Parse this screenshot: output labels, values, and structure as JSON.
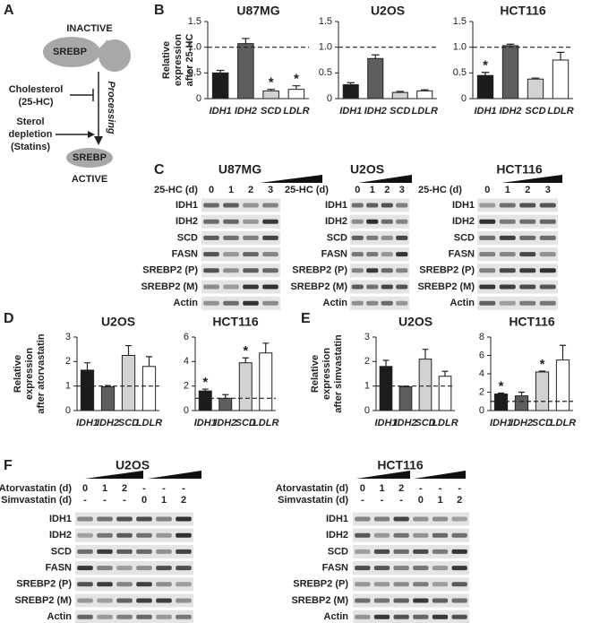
{
  "panel_labels": [
    "A",
    "B",
    "C",
    "D",
    "E",
    "F"
  ],
  "diagram": {
    "top_state": "INACTIVE",
    "top_protein": "SREBP",
    "inhibitor": [
      "Cholesterol",
      "(25-HC)"
    ],
    "activator": [
      "Sterol",
      "depletion",
      "(Statins)"
    ],
    "process": "Processing",
    "bottom_protein": "SREBP",
    "bottom_state": "ACTIVE"
  },
  "chart_data": [
    {
      "type": "bar",
      "title": "U87MG",
      "ylabel": [
        "Relative",
        "expression",
        "after 25-HC"
      ],
      "categories": [
        "IDH1",
        "IDH2",
        "SCD",
        "LDLR"
      ],
      "colors": [
        "#1c1c1c",
        "#5e5e5e",
        "#d2d2d2",
        "#ffffff"
      ],
      "values": [
        0.5,
        1.07,
        0.15,
        0.18
      ],
      "errors": [
        0.05,
        0.1,
        0.03,
        0.07
      ],
      "annotations": [
        null,
        null,
        "*",
        "*"
      ],
      "reference_line": 1,
      "ylim": [
        0,
        1.5
      ],
      "yticks": [
        0,
        0.5,
        {
          "value": 1,
          "label": "1.0"
        },
        1.5
      ]
    },
    {
      "type": "bar",
      "title": "U2OS",
      "categories": [
        "IDH1",
        "IDH2",
        "SCD",
        "LDLR"
      ],
      "colors": [
        "#1c1c1c",
        "#5e5e5e",
        "#d2d2d2",
        "#ffffff"
      ],
      "values": [
        0.27,
        0.78,
        0.12,
        0.15
      ],
      "errors": [
        0.04,
        0.07,
        0.02,
        0.02
      ],
      "annotations": [
        null,
        null,
        null,
        null
      ],
      "reference_line": 1,
      "ylim": [
        0,
        1.5
      ],
      "yticks": [
        0,
        0.5,
        {
          "value": 1,
          "label": "1.0"
        },
        1.5
      ]
    },
    {
      "type": "bar",
      "title": "HCT116",
      "categories": [
        "IDH1",
        "IDH2",
        "SCD",
        "LDLR"
      ],
      "colors": [
        "#1c1c1c",
        "#5e5e5e",
        "#d2d2d2",
        "#ffffff"
      ],
      "values": [
        0.45,
        1.03,
        0.38,
        0.75
      ],
      "errors": [
        0.06,
        0.03,
        0.02,
        0.15
      ],
      "annotations": [
        "*",
        null,
        null,
        null
      ],
      "reference_line": 1,
      "ylim": [
        0,
        1.5
      ],
      "yticks": [
        0,
        0.5,
        {
          "value": 1,
          "label": "1.0"
        },
        1.5
      ]
    },
    {
      "type": "bar",
      "title": "U2OS",
      "ylabel": [
        "Relative",
        "expression",
        "after atorvastatin"
      ],
      "categories": [
        "IDH1",
        "IDH2",
        "SCD",
        "LDLR"
      ],
      "colors": [
        "#1c1c1c",
        "#5e5e5e",
        "#d2d2d2",
        "#ffffff"
      ],
      "values": [
        1.65,
        0.97,
        2.25,
        1.8
      ],
      "errors": [
        0.3,
        0.05,
        0.4,
        0.4
      ],
      "annotations": [
        null,
        null,
        null,
        null
      ],
      "reference_line": 1,
      "ylim": [
        0,
        3
      ],
      "yticks": [
        0,
        1,
        2,
        3
      ]
    },
    {
      "type": "bar",
      "title": "HCT116",
      "categories": [
        "IDH1",
        "IDH2",
        "SCD",
        "LDLR"
      ],
      "colors": [
        "#1c1c1c",
        "#5e5e5e",
        "#d2d2d2",
        "#ffffff"
      ],
      "values": [
        1.6,
        1.0,
        3.9,
        4.7
      ],
      "errors": [
        0.15,
        0.3,
        0.4,
        0.8
      ],
      "annotations": [
        "*",
        null,
        "*",
        null
      ],
      "reference_line": 1,
      "ylim": [
        0,
        6
      ],
      "yticks": [
        0,
        2,
        4,
        6
      ]
    },
    {
      "type": "bar",
      "title": "U2OS",
      "ylabel": [
        "Relative",
        "expression",
        "after simvastatin"
      ],
      "categories": [
        "IDH1",
        "IDH2",
        "SCD",
        "LDLR"
      ],
      "colors": [
        "#1c1c1c",
        "#5e5e5e",
        "#d2d2d2",
        "#ffffff"
      ],
      "values": [
        1.8,
        0.97,
        2.1,
        1.4
      ],
      "errors": [
        0.25,
        0.03,
        0.4,
        0.2
      ],
      "annotations": [
        null,
        null,
        null,
        null
      ],
      "reference_line": 1,
      "ylim": [
        0,
        3
      ],
      "yticks": [
        0,
        1,
        2,
        3
      ]
    },
    {
      "type": "bar",
      "title": "HCT116",
      "categories": [
        "IDH1",
        "IDH2",
        "SCD",
        "LDLR"
      ],
      "colors": [
        "#1c1c1c",
        "#5e5e5e",
        "#d2d2d2",
        "#ffffff"
      ],
      "values": [
        1.8,
        1.6,
        4.2,
        5.5
      ],
      "errors": [
        0.1,
        0.4,
        0.1,
        1.6
      ],
      "annotations": [
        "*",
        null,
        "*",
        null
      ],
      "reference_line": 1,
      "ylim": [
        0,
        8
      ],
      "yticks": [
        0,
        2,
        4,
        6,
        8
      ]
    }
  ],
  "blots": [
    {
      "title": "U87MG",
      "treatments": [
        {
          "label": "25-HC (d)",
          "lanes": [
            "0",
            "1",
            "2",
            "3"
          ]
        }
      ],
      "rows": [
        "IDH1",
        "IDH2",
        "SCD",
        "FASN",
        "SREBP2 (P)",
        "SREBP2 (M)",
        "Actin"
      ]
    },
    {
      "title": "U2OS",
      "treatments": [
        {
          "label": "25-HC (d)",
          "lanes": [
            "0",
            "1",
            "2",
            "3"
          ]
        }
      ],
      "rows": [
        "IDH1",
        "IDH2",
        "SCD",
        "FASN",
        "SREBP2 (P)",
        "SREBP2 (M)",
        "Actin"
      ]
    },
    {
      "title": "HCT116",
      "treatments": [
        {
          "label": "25-HC (d)",
          "lanes": [
            "0",
            "1",
            "2",
            "3"
          ]
        }
      ],
      "rows": [
        "IDH1",
        "IDH2",
        "SCD",
        "FASN",
        "SREBP2 (P)",
        "SREBP2 (M)",
        "Actin"
      ]
    },
    {
      "title": "U2OS",
      "treatments": [
        {
          "label": "Atorvastatin (d)",
          "lanes": [
            "0",
            "1",
            "2",
            "-",
            "-",
            "-"
          ]
        },
        {
          "label": "Simvastatin (d)",
          "lanes": [
            "-",
            "-",
            "-",
            "0",
            "1",
            "2"
          ]
        }
      ],
      "rows": [
        "IDH1",
        "IDH2",
        "SCD",
        "FASN",
        "SREBP2 (P)",
        "SREBP2 (M)",
        "Actin"
      ]
    },
    {
      "title": "HCT116",
      "treatments": [
        {
          "label": "Atorvastatin (d)",
          "lanes": [
            "0",
            "1",
            "2",
            "-",
            "-",
            "-"
          ]
        },
        {
          "label": "Simvastatin (d)",
          "lanes": [
            "-",
            "-",
            "-",
            "0",
            "1",
            "2"
          ]
        }
      ],
      "rows": [
        "IDH1",
        "IDH2",
        "SCD",
        "FASN",
        "SREBP2 (P)",
        "SREBP2 (M)",
        "Actin"
      ]
    }
  ]
}
